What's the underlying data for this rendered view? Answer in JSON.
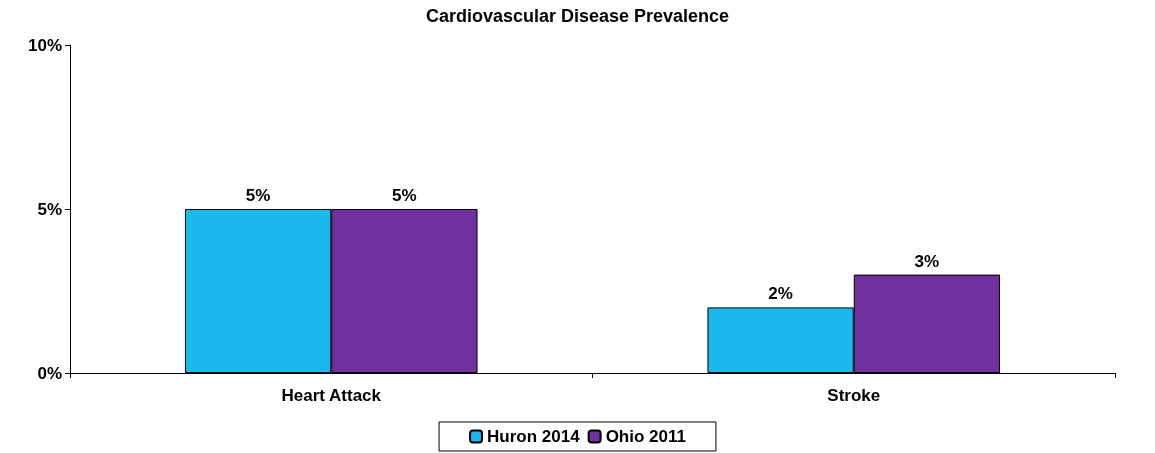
{
  "chart_data": {
    "type": "bar",
    "title": "Cardiovascular Disease Prevalence",
    "categories": [
      "Heart Attack",
      "Stroke"
    ],
    "series": [
      {
        "name": "Huron 2014",
        "color": "#1ab8ec",
        "values": [
          5,
          2
        ],
        "value_labels": [
          "5%",
          "2%"
        ]
      },
      {
        "name": "Ohio 2011",
        "color": "#7030a0",
        "values": [
          5,
          3
        ],
        "value_labels": [
          "5%",
          "3%"
        ]
      }
    ],
    "ylim": [
      0,
      10
    ],
    "yticks": [
      {
        "value": 0,
        "label": "0%"
      },
      {
        "value": 5,
        "label": "5%"
      },
      {
        "value": 10,
        "label": "10%"
      }
    ],
    "grid": false,
    "legend": "bottom"
  }
}
